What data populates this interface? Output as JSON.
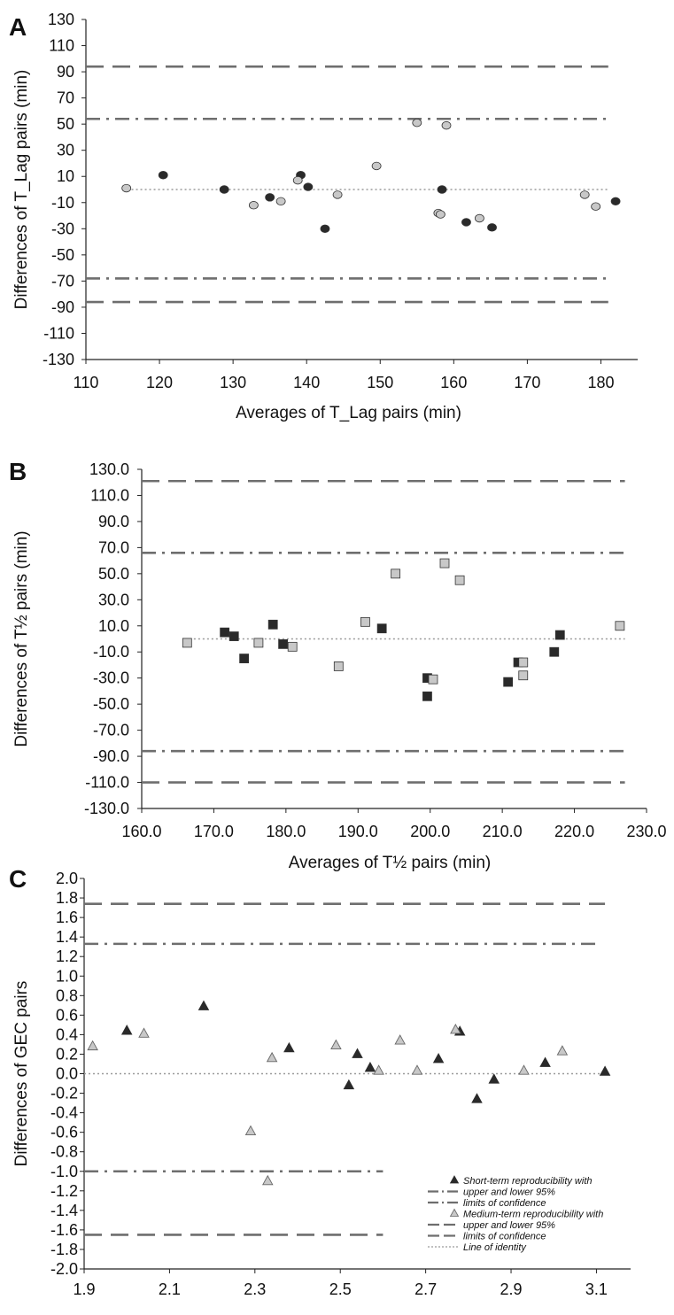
{
  "colors": {
    "axis": "#222222",
    "limit_line": "#6e6e6e",
    "identity_line": "#9a9a9a",
    "marker_dark": "#2a2a2a",
    "marker_light": "#c8c8c8",
    "marker_stroke": "#333333"
  },
  "chart_data": [
    {
      "panel": "A",
      "type": "scatter",
      "xlabel": "Averages of T_Lag pairs (min)",
      "ylabel": "Differences of T_Lag pairs (min)",
      "xlim": [
        110,
        185
      ],
      "ylim": [
        -130,
        130
      ],
      "x_ticks": [
        "110",
        "120",
        "130",
        "140",
        "150",
        "160",
        "170",
        "180"
      ],
      "y_ticks": [
        "130",
        "110",
        "90",
        "70",
        "50",
        "30",
        "10",
        "-10",
        "-30",
        "-50",
        "-70",
        "-90",
        "-110",
        "-130"
      ],
      "x_tick_values": [
        110,
        120,
        130,
        140,
        150,
        160,
        170,
        180
      ],
      "y_tick_values": [
        130,
        110,
        90,
        70,
        50,
        30,
        10,
        -10,
        -30,
        -50,
        -70,
        -90,
        -110,
        -130
      ],
      "marker": "circle",
      "lines": [
        {
          "style": "dashed",
          "y": 94,
          "x_range": [
            110,
            181
          ]
        },
        {
          "style": "dashdot",
          "y": 54,
          "x_range": [
            110,
            181
          ]
        },
        {
          "style": "dotted",
          "y": 0,
          "x_range": [
            115,
            181
          ]
        },
        {
          "style": "dashdot",
          "y": -68,
          "x_range": [
            110,
            181
          ]
        },
        {
          "style": "dashed",
          "y": -86,
          "x_range": [
            110,
            181
          ]
        }
      ],
      "series": [
        {
          "shade": "dark",
          "points": [
            [
              120.5,
              11
            ],
            [
              128.8,
              0
            ],
            [
              135,
              -6
            ],
            [
              139.2,
              11
            ],
            [
              140.2,
              2
            ],
            [
              142.5,
              -30
            ],
            [
              158.4,
              0
            ],
            [
              161.7,
              -25
            ],
            [
              165.2,
              -29
            ],
            [
              182,
              -9
            ]
          ]
        },
        {
          "shade": "light",
          "points": [
            [
              115.5,
              1
            ],
            [
              132.8,
              -12
            ],
            [
              136.5,
              -9
            ],
            [
              138.8,
              7
            ],
            [
              144.2,
              -4
            ],
            [
              149.5,
              18
            ],
            [
              155,
              51
            ],
            [
              157.9,
              -18
            ],
            [
              158.2,
              -19
            ],
            [
              159,
              49
            ],
            [
              163.5,
              -22
            ],
            [
              177.8,
              -4
            ],
            [
              179.3,
              -13
            ]
          ]
        }
      ]
    },
    {
      "panel": "B",
      "type": "scatter",
      "xlabel": "Averages of T½ pairs (min)",
      "ylabel": "Differences of T½ pairs (min)",
      "xlim": [
        160,
        230
      ],
      "ylim": [
        -130,
        130
      ],
      "x_ticks": [
        "160.0",
        "170.0",
        "180.0",
        "190.0",
        "200.0",
        "210.0",
        "220.0",
        "230.0"
      ],
      "y_ticks": [
        "130.0",
        "110.0",
        "90.0",
        "70.0",
        "50.0",
        "30.0",
        "10.0",
        "-10.0",
        "-30.0",
        "-50.0",
        "-70.0",
        "-90.0",
        "-110.0",
        "-130.0"
      ],
      "x_tick_values": [
        160,
        170,
        180,
        190,
        200,
        210,
        220,
        230
      ],
      "y_tick_values": [
        130,
        110,
        90,
        70,
        50,
        30,
        10,
        -10,
        -30,
        -50,
        -70,
        -90,
        -110,
        -130
      ],
      "marker": "square",
      "lines": [
        {
          "style": "dashed",
          "y": 121,
          "x_range": [
            160,
            227
          ]
        },
        {
          "style": "dashdot",
          "y": 66,
          "x_range": [
            160,
            227
          ]
        },
        {
          "style": "dotted",
          "y": 0,
          "x_range": [
            166,
            227
          ]
        },
        {
          "style": "dashdot",
          "y": -86,
          "x_range": [
            160,
            227
          ]
        },
        {
          "style": "dashed",
          "y": -110,
          "x_range": [
            160,
            227
          ]
        }
      ],
      "series": [
        {
          "shade": "dark",
          "points": [
            [
              171.5,
              5
            ],
            [
              172.8,
              2
            ],
            [
              174.2,
              -15
            ],
            [
              178.2,
              11
            ],
            [
              179.6,
              -4
            ],
            [
              193.3,
              8
            ],
            [
              199.6,
              -30
            ],
            [
              199.6,
              -44
            ],
            [
              210.8,
              -33
            ],
            [
              212.2,
              -18
            ],
            [
              217.2,
              -10
            ],
            [
              218,
              3
            ]
          ]
        },
        {
          "shade": "light",
          "points": [
            [
              166.3,
              -3
            ],
            [
              176.2,
              -3
            ],
            [
              180.9,
              -6
            ],
            [
              187.3,
              -21
            ],
            [
              191,
              13
            ],
            [
              195.2,
              50
            ],
            [
              200.4,
              -31
            ],
            [
              202,
              58
            ],
            [
              204.1,
              45
            ],
            [
              212.9,
              -18
            ],
            [
              212.9,
              -28
            ],
            [
              226.3,
              10
            ]
          ]
        }
      ]
    },
    {
      "panel": "C",
      "type": "scatter",
      "xlabel": "",
      "ylabel": "Differences of GEC pairs",
      "xlim": [
        1.9,
        3.18
      ],
      "ylim": [
        -2.0,
        2.0
      ],
      "x_ticks": [
        "1.9",
        "2.1",
        "2.3",
        "2.5",
        "2.7",
        "2.9",
        "3.1"
      ],
      "y_ticks": [
        "2.0",
        "1.8",
        "1.6",
        "1.4",
        "1.2",
        "1.0",
        "0.8",
        "0.6",
        "0.4",
        "0.2",
        "0.0",
        "-0.2",
        "-0.4",
        "-0.6",
        "-0.8",
        "-1.0",
        "-1.2",
        "-1.4",
        "-1.6",
        "-1.8",
        "-2.0"
      ],
      "x_tick_values": [
        1.9,
        2.1,
        2.3,
        2.5,
        2.7,
        2.9,
        3.1
      ],
      "y_tick_values": [
        2.0,
        1.8,
        1.6,
        1.4,
        1.2,
        1.0,
        0.8,
        0.6,
        0.4,
        0.2,
        0.0,
        -0.2,
        -0.4,
        -0.6,
        -0.8,
        -1.0,
        -1.2,
        -1.4,
        -1.6,
        -1.8,
        -2.0
      ],
      "marker": "triangle",
      "lines": [
        {
          "style": "dashed",
          "y": 1.74,
          "x_range": [
            1.9,
            3.12
          ]
        },
        {
          "style": "dashdot",
          "y": 1.33,
          "x_range": [
            1.9,
            3.11
          ]
        },
        {
          "style": "dotted",
          "y": 0.0,
          "x_range": [
            1.9,
            3.12
          ]
        },
        {
          "style": "dashdot",
          "y": -1.0,
          "x_range": [
            1.9,
            2.6
          ]
        },
        {
          "style": "dashed",
          "y": -1.65,
          "x_range": [
            1.9,
            2.6
          ]
        }
      ],
      "series": [
        {
          "shade": "dark",
          "points": [
            [
              2.0,
              0.44
            ],
            [
              2.18,
              0.69
            ],
            [
              2.38,
              0.26
            ],
            [
              2.52,
              -0.12
            ],
            [
              2.54,
              0.2
            ],
            [
              2.57,
              0.06
            ],
            [
              2.73,
              0.15
            ],
            [
              2.78,
              0.43
            ],
            [
              2.82,
              -0.26
            ],
            [
              2.86,
              -0.06
            ],
            [
              2.98,
              0.11
            ],
            [
              3.12,
              0.02
            ]
          ]
        },
        {
          "shade": "light",
          "points": [
            [
              1.92,
              0.28
            ],
            [
              2.04,
              0.41
            ],
            [
              2.29,
              -0.59
            ],
            [
              2.33,
              -1.1
            ],
            [
              2.34,
              0.16
            ],
            [
              2.49,
              0.29
            ],
            [
              2.59,
              0.03
            ],
            [
              2.64,
              0.34
            ],
            [
              2.68,
              0.03
            ],
            [
              2.77,
              0.45
            ],
            [
              2.93,
              0.03
            ],
            [
              3.02,
              0.23
            ]
          ]
        }
      ],
      "legend": {
        "placement": "bottom-right",
        "entries": [
          {
            "symbol": "triangle-dark",
            "text": "Short-term reproducibility with"
          },
          {
            "symbol": "dashdot",
            "text": "upper and lower 95%"
          },
          {
            "symbol": "dashdot",
            "text": "limits of confidence"
          },
          {
            "symbol": "triangle-light",
            "text": "Medium-term reproducibility with"
          },
          {
            "symbol": "dashed",
            "text": "upper and lower 95%"
          },
          {
            "symbol": "dashed",
            "text": "limits of confidence"
          },
          {
            "symbol": "dotted",
            "text": "Line of identity"
          }
        ]
      }
    }
  ]
}
